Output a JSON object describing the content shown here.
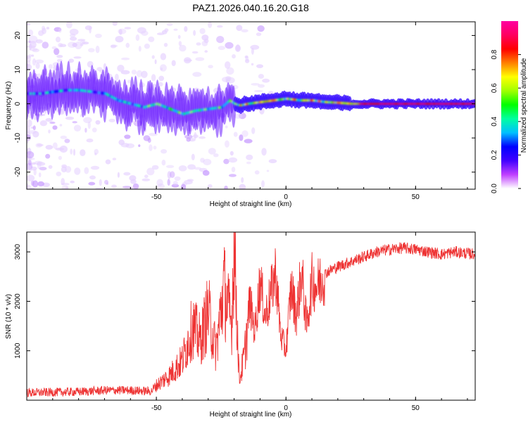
{
  "figure": {
    "title": "PAZ1.2026.040.16.20.G18"
  },
  "chart_data": [
    {
      "type": "heatmap",
      "title": "PAZ1.2026.040.16.20.G18",
      "xlabel": "Height of straight line (km)",
      "ylabel": "Frequency (Hz)",
      "xlim": [
        -100,
        73
      ],
      "ylim": [
        -25,
        24
      ],
      "xticks": [
        -50,
        0,
        50
      ],
      "yticks": [
        -20,
        -10,
        0,
        10,
        20
      ],
      "ridge": {
        "x": [
          -100,
          -95,
          -90,
          -85,
          -80,
          -75,
          -70,
          -65,
          -60,
          -55,
          -50,
          -45,
          -40,
          -35,
          -30,
          -25,
          -22,
          -20,
          -18,
          -15,
          -10,
          -5,
          0,
          5,
          10,
          15,
          20,
          25,
          30,
          40,
          50,
          60,
          73
        ],
        "y": [
          3,
          3,
          3.5,
          4,
          4,
          3.5,
          3,
          1,
          0,
          -1,
          0,
          -1.5,
          -3,
          -2,
          -1.5,
          -1,
          1,
          0,
          -0.5,
          0,
          0.5,
          1,
          1.5,
          1,
          1,
          0.5,
          0.3,
          0,
          0,
          0,
          0,
          0,
          0
        ]
      },
      "colorbar": {
        "label": "Normalized spectral amplitude",
        "range": [
          0,
          1
        ],
        "ticks": [
          0.0,
          0.2,
          0.4,
          0.6,
          0.8
        ],
        "tick_labels": [
          "0.0",
          "0.2",
          "0.4",
          "0.6",
          "0.8"
        ],
        "colormap": [
          "#ffffff",
          "#c040ff",
          "#4000ff",
          "#0000ff",
          "#00c0ff",
          "#00ffa0",
          "#00ff00",
          "#a0ff00",
          "#ffff00",
          "#ff8000",
          "#ff0000",
          "#ff0060",
          "#ff00a0"
        ]
      }
    },
    {
      "type": "line",
      "xlabel": "Height of straight line (km)",
      "ylabel": "SNR (10 * v/v)",
      "xlim": [
        -100,
        73
      ],
      "ylim": [
        0,
        3400
      ],
      "xticks": [
        -50,
        0,
        50
      ],
      "yticks": [
        1000,
        2000,
        3000
      ],
      "series": [
        {
          "name": "SNR",
          "color": "#ee3333",
          "x": [
            -100,
            -90,
            -80,
            -70,
            -60,
            -52,
            -50,
            -45,
            -40,
            -36,
            -33,
            -30,
            -27,
            -24,
            -21,
            -20,
            -19,
            -18,
            -16,
            -14,
            -12,
            -10,
            -8,
            -6,
            -4,
            -2,
            0,
            2,
            4,
            6,
            8,
            10,
            12,
            14,
            16,
            20,
            25,
            30,
            35,
            40,
            45,
            50,
            55,
            60,
            65,
            73
          ],
          "y": [
            150,
            160,
            170,
            200,
            200,
            180,
            300,
            500,
            800,
            1500,
            1200,
            1800,
            1000,
            2300,
            1500,
            3300,
            1800,
            400,
            900,
            2000,
            1400,
            2400,
            1700,
            2100,
            2600,
            1300,
            1000,
            2300,
            1700,
            2600,
            1500,
            2400,
            2300,
            2500,
            2600,
            2700,
            2800,
            2900,
            3000,
            3050,
            3080,
            3050,
            3000,
            2950,
            3000,
            2950
          ]
        }
      ]
    }
  ]
}
